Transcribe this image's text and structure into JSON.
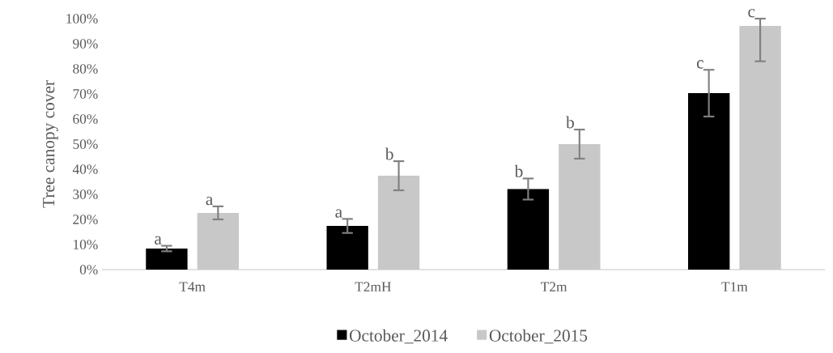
{
  "chart_data": {
    "type": "bar",
    "ylabel": "Tree canopy cover",
    "categories": [
      "T4m",
      "T2mH",
      "T2m",
      "T1m"
    ],
    "series": [
      {
        "name": "October_2014",
        "color": "#000000",
        "values": [
          8.4,
          17.4,
          32.1,
          70.3
        ],
        "errors": [
          1.1,
          2.8,
          4.2,
          9.3
        ],
        "value_labels": [
          "a",
          "a",
          "b",
          "c"
        ]
      },
      {
        "name": "October_2015",
        "color": "#c8c8c8",
        "values": [
          22.6,
          37.4,
          50.0,
          97.1
        ],
        "errors": [
          2.6,
          5.8,
          5.8,
          [
            83,
            100
          ]
        ],
        "value_labels": [
          "a",
          "b",
          "b",
          "c"
        ]
      }
    ],
    "ylim": [
      0,
      100
    ],
    "yticks": [
      {
        "value": 0,
        "label": "0%"
      },
      {
        "value": 10,
        "label": "10%"
      },
      {
        "value": 20,
        "label": "20%"
      },
      {
        "value": 30,
        "label": "30%"
      },
      {
        "value": 40,
        "label": "40%"
      },
      {
        "value": 50,
        "label": "50%"
      },
      {
        "value": 60,
        "label": "60%"
      },
      {
        "value": 70,
        "label": "70%"
      },
      {
        "value": 80,
        "label": "80%"
      },
      {
        "value": 90,
        "label": "90%"
      },
      {
        "value": 100,
        "label": "100%"
      }
    ],
    "legend": "bottom"
  }
}
